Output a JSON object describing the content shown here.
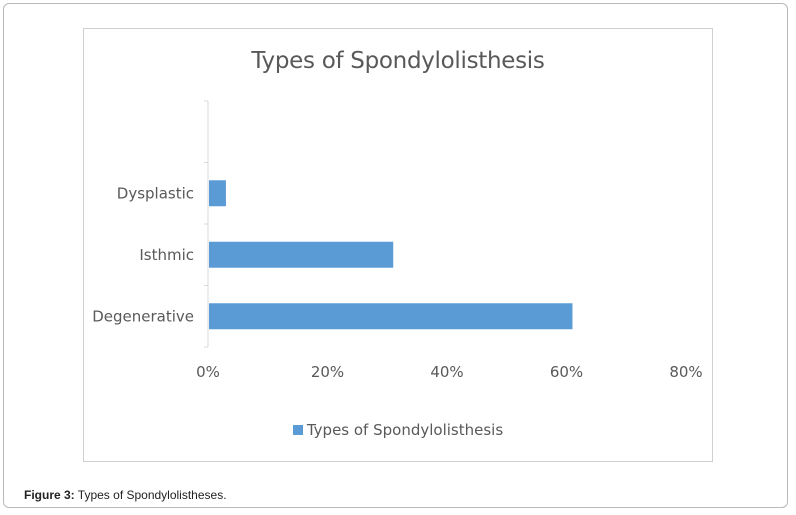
{
  "chart_data": {
    "type": "bar",
    "orientation": "horizontal",
    "title": "Types of Spondylolisthesis",
    "categories": [
      "Degenerative",
      "Isthmic",
      "Dysplastic"
    ],
    "series": [
      {
        "name": "Types of Spondylolisthesis",
        "values": [
          0.61,
          0.31,
          0.03
        ],
        "color": "#5b9bd5"
      }
    ],
    "xlim": [
      0,
      0.8
    ],
    "x_ticks": [
      0,
      0.2,
      0.4,
      0.6,
      0.8
    ],
    "x_tick_labels": [
      "0%",
      "20%",
      "40%",
      "60%",
      "80%"
    ],
    "grid": false,
    "legend_position": "bottom"
  },
  "caption": {
    "label": "Figure 3:",
    "text": " Types of Spondylolistheses."
  }
}
